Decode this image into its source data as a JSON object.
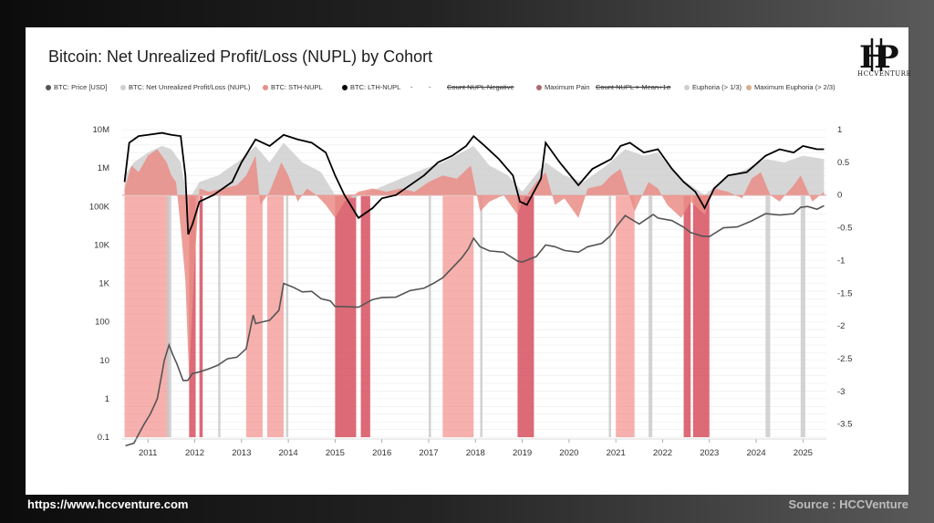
{
  "colors": {
    "price": "#555555",
    "nupl": "#cfcfcf",
    "sth": "#ea8d86",
    "lth": "#000000",
    "pain": "#d6505f",
    "pain_light": "#f28f8a",
    "euphoria": "#c8c8c8",
    "zero_line": "#e8c9c9",
    "grid": "#ececec"
  },
  "footer": {
    "url": "https://www.hccventure.com",
    "source": "Source : HCCVenture"
  },
  "logo": {
    "text": "HCCVENTURE"
  },
  "chart_data": {
    "type": "line",
    "title": "Bitcoin: Net Unrealized Profit/Loss (NUPL) by Cohort",
    "legend": [
      {
        "label": "BTC: Price [USD]",
        "color": "#555555",
        "struck": false
      },
      {
        "label": "BTC: Net Unrealized Profit/Loss (NUPL)",
        "color": "#cfcfcf",
        "struck": false
      },
      {
        "label": "BTC: STH-NUPL",
        "color": "#ea8d86",
        "struck": false
      },
      {
        "label": "BTC: LTH-NUPL",
        "color": "#000000",
        "struck": false
      },
      {
        "label": "-",
        "color": "",
        "struck": false
      },
      {
        "label": "-",
        "color": "",
        "struck": false
      },
      {
        "label": "Count NUPL Negative",
        "color": "",
        "struck": true
      },
      {
        "label": "Maximum Pain",
        "color": "#b0676d",
        "struck": false
      },
      {
        "label": "Count NUPL > Mean+1σ",
        "color": "",
        "struck": true
      },
      {
        "label": "Euphoria (> 1/3)",
        "color": "#cfcfcf",
        "struck": false
      },
      {
        "label": "Maximum Euphoria (> 2/3)",
        "color": "#d9b08c",
        "struck": false
      }
    ],
    "legend_placement": "top",
    "x_ticks": [
      "2011",
      "2012",
      "2013",
      "2014",
      "2015",
      "2016",
      "2017",
      "2018",
      "2019",
      "2020",
      "2021",
      "2022",
      "2023",
      "2024",
      "2025"
    ],
    "x_range": [
      2010.45,
      2025.5
    ],
    "y_left": {
      "scale": "log",
      "ticks": [
        {
          "value": 0.1,
          "label": "0.1"
        },
        {
          "value": 1,
          "label": "1"
        },
        {
          "value": 10,
          "label": "10"
        },
        {
          "value": 100,
          "label": "100"
        },
        {
          "value": 1000,
          "label": "1K"
        },
        {
          "value": 10000,
          "label": "10K"
        },
        {
          "value": 100000,
          "label": "100K"
        },
        {
          "value": 1000000,
          "label": "1M"
        },
        {
          "value": 10000000,
          "label": "10M"
        }
      ],
      "range": [
        0.1,
        10000000
      ]
    },
    "y_right": {
      "scale": "linear",
      "ticks": [
        {
          "value": 1,
          "label": "1"
        },
        {
          "value": 0.5,
          "label": "0.5"
        },
        {
          "value": 0,
          "label": "0"
        },
        {
          "value": -0.5,
          "label": "-0.5"
        },
        {
          "value": -1,
          "label": "-1"
        },
        {
          "value": -1.5,
          "label": "-1.5"
        },
        {
          "value": -2,
          "label": "-2"
        },
        {
          "value": -2.5,
          "label": "-2.5"
        },
        {
          "value": -3,
          "label": "-3"
        },
        {
          "value": -3.5,
          "label": "-3.5"
        }
      ],
      "range": [
        -3.7,
        1
      ]
    },
    "grid": true,
    "series": [
      {
        "name": "BTC: Price [USD]",
        "axis": "left",
        "x": [
          2010.52,
          2010.7,
          2010.9,
          2011.05,
          2011.2,
          2011.35,
          2011.45,
          2011.52,
          2011.62,
          2011.75,
          2011.85,
          2011.95,
          2012.1,
          2012.3,
          2012.5,
          2012.7,
          2012.9,
          2013.1,
          2013.25,
          2013.3,
          2013.45,
          2013.6,
          2013.8,
          2013.9,
          2014.1,
          2014.3,
          2014.5,
          2014.7,
          2014.9,
          2015.0,
          2015.2,
          2015.5,
          2015.8,
          2016.0,
          2016.3,
          2016.6,
          2016.9,
          2017.1,
          2017.3,
          2017.5,
          2017.7,
          2017.85,
          2017.96,
          2018.1,
          2018.3,
          2018.6,
          2018.9,
          2019.0,
          2019.3,
          2019.5,
          2019.7,
          2019.9,
          2020.2,
          2020.4,
          2020.7,
          2020.9,
          2021.0,
          2021.2,
          2021.5,
          2021.8,
          2021.9,
          2022.2,
          2022.45,
          2022.6,
          2022.85,
          2023.0,
          2023.3,
          2023.6,
          2023.9,
          2024.2,
          2024.5,
          2024.8,
          2024.95,
          2025.1,
          2025.3,
          2025.45
        ],
        "y": [
          0.06,
          0.07,
          0.2,
          0.4,
          1.0,
          10,
          25,
          15,
          8,
          3,
          3,
          4.5,
          5,
          6,
          7.5,
          11,
          12,
          20,
          150,
          90,
          100,
          110,
          200,
          1000,
          800,
          600,
          620,
          400,
          350,
          250,
          250,
          240,
          380,
          430,
          440,
          650,
          750,
          1000,
          1400,
          2500,
          4500,
          8000,
          15000,
          9000,
          7000,
          6500,
          3800,
          3600,
          5000,
          10000,
          9000,
          7200,
          6500,
          9000,
          11000,
          18000,
          29000,
          58000,
          35000,
          62000,
          50000,
          43000,
          29000,
          21000,
          17000,
          16500,
          28000,
          29500,
          42000,
          65000,
          60000,
          65000,
          95000,
          100000,
          85000,
          105000
        ]
      },
      {
        "name": "BTC: LTH-NUPL",
        "axis": "right",
        "x": [
          2010.5,
          2010.6,
          2010.8,
          2011.0,
          2011.3,
          2011.5,
          2011.7,
          2011.8,
          2011.86,
          2011.95,
          2012.1,
          2012.4,
          2012.8,
          2013.0,
          2013.3,
          2013.6,
          2013.9,
          2014.2,
          2014.5,
          2014.8,
          2015.0,
          2015.2,
          2015.5,
          2015.8,
          2016.0,
          2016.3,
          2016.6,
          2016.9,
          2017.2,
          2017.5,
          2017.8,
          2017.96,
          2018.2,
          2018.5,
          2018.8,
          2018.95,
          2019.1,
          2019.4,
          2019.5,
          2019.8,
          2020.2,
          2020.5,
          2020.9,
          2021.1,
          2021.3,
          2021.6,
          2021.9,
          2022.2,
          2022.45,
          2022.7,
          2022.9,
          2023.1,
          2023.4,
          2023.8,
          2024.2,
          2024.5,
          2024.8,
          2025.0,
          2025.3,
          2025.45
        ],
        "y": [
          0.2,
          0.8,
          0.9,
          0.92,
          0.95,
          0.92,
          0.9,
          0.3,
          -0.6,
          -0.45,
          -0.1,
          0.0,
          0.2,
          0.5,
          0.85,
          0.75,
          0.92,
          0.85,
          0.8,
          0.65,
          0.3,
          0.0,
          -0.35,
          -0.2,
          -0.05,
          0.0,
          0.15,
          0.3,
          0.5,
          0.6,
          0.75,
          0.9,
          0.75,
          0.55,
          0.3,
          -0.1,
          -0.15,
          0.25,
          0.8,
          0.5,
          0.15,
          0.4,
          0.55,
          0.75,
          0.8,
          0.65,
          0.7,
          0.4,
          0.2,
          0.05,
          -0.2,
          0.1,
          0.3,
          0.35,
          0.6,
          0.7,
          0.65,
          0.75,
          0.7,
          0.7
        ]
      },
      {
        "name": "BTC: Net Unrealized Profit/Loss (NUPL)",
        "axis": "right",
        "x": [
          2010.5,
          2010.7,
          2011.0,
          2011.3,
          2011.5,
          2011.7,
          2011.85,
          2012.1,
          2012.5,
          2013.0,
          2013.3,
          2013.6,
          2013.9,
          2014.3,
          2014.7,
          2015.0,
          2015.4,
          2015.9,
          2016.4,
          2016.9,
          2017.3,
          2017.7,
          2017.96,
          2018.3,
          2018.7,
          2019.0,
          2019.5,
          2019.9,
          2020.3,
          2020.8,
          2021.2,
          2021.6,
          2021.9,
          2022.3,
          2022.9,
          2023.3,
          2023.8,
          2024.2,
          2024.6,
          2025.0,
          2025.45
        ],
        "y": [
          0.3,
          0.5,
          0.65,
          0.75,
          0.7,
          0.5,
          -0.1,
          0.2,
          0.3,
          0.55,
          0.75,
          0.5,
          0.8,
          0.5,
          0.35,
          0.0,
          -0.05,
          0.1,
          0.25,
          0.4,
          0.5,
          0.65,
          0.75,
          0.45,
          0.3,
          0.05,
          0.5,
          0.3,
          0.2,
          0.45,
          0.7,
          0.6,
          0.65,
          0.3,
          0.0,
          0.25,
          0.4,
          0.55,
          0.5,
          0.6,
          0.55
        ]
      },
      {
        "name": "BTC: STH-NUPL",
        "axis": "right",
        "x": [
          2010.5,
          2010.65,
          2010.8,
          2011.0,
          2011.2,
          2011.4,
          2011.5,
          2011.6,
          2011.7,
          2011.8,
          2011.88,
          2012.0,
          2012.1,
          2012.3,
          2012.6,
          2012.9,
          2013.1,
          2013.3,
          2013.4,
          2013.6,
          2013.85,
          2014.0,
          2014.2,
          2014.4,
          2014.6,
          2014.8,
          2015.0,
          2015.2,
          2015.5,
          2015.8,
          2016.1,
          2016.4,
          2016.7,
          2017.0,
          2017.3,
          2017.6,
          2017.9,
          2018.1,
          2018.3,
          2018.6,
          2018.9,
          2019.0,
          2019.3,
          2019.5,
          2019.7,
          2019.9,
          2020.2,
          2020.4,
          2020.7,
          2020.9,
          2021.1,
          2021.4,
          2021.7,
          2021.9,
          2022.1,
          2022.4,
          2022.6,
          2022.9,
          2023.1,
          2023.4,
          2023.7,
          2023.9,
          2024.1,
          2024.3,
          2024.5,
          2024.8,
          2024.95,
          2025.2,
          2025.45
        ],
        "y": [
          0.1,
          0.45,
          0.35,
          0.6,
          0.7,
          0.5,
          0.3,
          0.2,
          -0.5,
          -1.3,
          -2.8,
          -1.0,
          0.1,
          0.05,
          0.1,
          0.15,
          0.3,
          0.6,
          -0.15,
          0.05,
          0.5,
          0.3,
          -0.1,
          0.1,
          0.0,
          -0.15,
          -0.35,
          -0.1,
          0.05,
          0.1,
          0.05,
          0.1,
          0.05,
          0.2,
          0.3,
          0.25,
          0.45,
          -0.25,
          -0.1,
          0.0,
          -0.3,
          -0.1,
          0.2,
          0.35,
          -0.15,
          -0.05,
          -0.35,
          0.1,
          0.15,
          0.3,
          0.4,
          -0.25,
          0.2,
          0.1,
          -0.15,
          -0.35,
          -0.1,
          -0.3,
          0.1,
          0.05,
          -0.05,
          0.25,
          0.35,
          0.0,
          -0.1,
          0.15,
          0.3,
          -0.1,
          0.05
        ]
      }
    ],
    "bands": {
      "maximum_pain": [
        [
          2011.88,
          2012.02
        ],
        [
          2012.1,
          2012.17
        ],
        [
          2015.0,
          2015.45
        ],
        [
          2015.55,
          2015.75
        ],
        [
          2018.9,
          2019.25
        ],
        [
          2022.45,
          2022.6
        ],
        [
          2022.65,
          2023.0
        ]
      ],
      "maximum_pain_light": [
        [
          2010.5,
          2011.45
        ],
        [
          2013.1,
          2013.45
        ],
        [
          2013.55,
          2013.9
        ],
        [
          2017.3,
          2017.96
        ],
        [
          2021.0,
          2021.4
        ]
      ],
      "euphoria": [
        [
          2011.4,
          2011.5
        ],
        [
          2012.5,
          2012.55
        ],
        [
          2013.95,
          2014.0
        ],
        [
          2017.0,
          2017.05
        ],
        [
          2018.1,
          2018.15
        ],
        [
          2020.85,
          2020.9
        ],
        [
          2021.7,
          2021.78
        ],
        [
          2024.2,
          2024.3
        ],
        [
          2024.95,
          2025.05
        ]
      ]
    }
  }
}
